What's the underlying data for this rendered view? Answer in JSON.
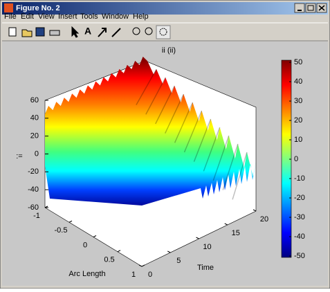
{
  "window": {
    "title": "Figure No. 2",
    "menu": [
      "File",
      "Edit",
      "View",
      "Insert",
      "Tools",
      "Window",
      "Help"
    ]
  },
  "chart_data": {
    "type": "surface",
    "title": "ii (ii)",
    "xlabel": "Arc Length",
    "ylabel": "Time",
    "zlabel": ":=",
    "xlim": [
      -1,
      1
    ],
    "xticks": [
      -1,
      -0.5,
      0,
      0.5,
      1
    ],
    "ylim": [
      0,
      20
    ],
    "yticks": [
      0,
      5,
      10,
      15,
      20
    ],
    "zlim": [
      -60,
      60
    ],
    "zticks": [
      -60,
      -40,
      -20,
      0,
      20,
      40,
      60
    ],
    "clim": [
      -50.7,
      51.1
    ],
    "cticks": [
      -50,
      -40,
      -30,
      -20,
      -10,
      0,
      10,
      20,
      30,
      40,
      50
    ]
  }
}
